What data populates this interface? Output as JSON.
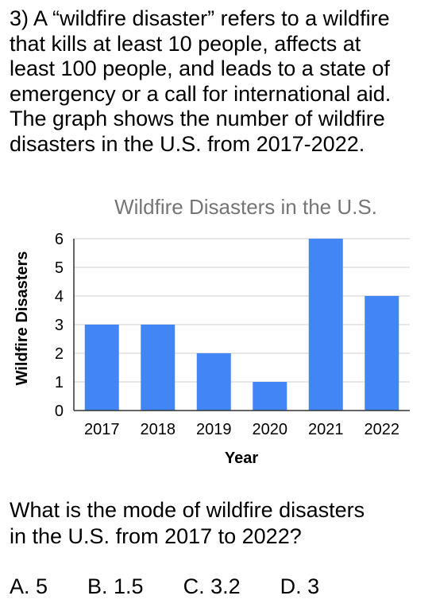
{
  "question": {
    "intro": "3)  A “wildfire disaster” refers to a wildfire\nthat kills at least 10 people, affects at\nleast 100 people, and leads to a state of\nemergency or a call for international aid.\nThe graph shows the number of wildfire\ndisasters in the U.S. from 2017-2022.",
    "prompt": "What is the mode of wildfire disasters\nin the U.S. from 2017 to 2022?"
  },
  "options": [
    {
      "label": "A.  5"
    },
    {
      "label": "B.  1.5"
    },
    {
      "label": "C.  3.2"
    },
    {
      "label": "D.  3"
    }
  ],
  "chart_data": {
    "type": "bar",
    "title": "Wildfire Disasters in the U.S.",
    "xlabel": "Year",
    "ylabel": "Wildfire Disasters",
    "categories": [
      "2017",
      "2018",
      "2019",
      "2020",
      "2021",
      "2022"
    ],
    "values": [
      3,
      3,
      2,
      1,
      6,
      4
    ],
    "ylim": [
      0,
      6
    ],
    "yticks": [
      "0",
      "1",
      "2",
      "3",
      "4",
      "5",
      "6"
    ],
    "grid": true,
    "bar_color": "#4285f4",
    "grid_color": "#cccccc"
  }
}
